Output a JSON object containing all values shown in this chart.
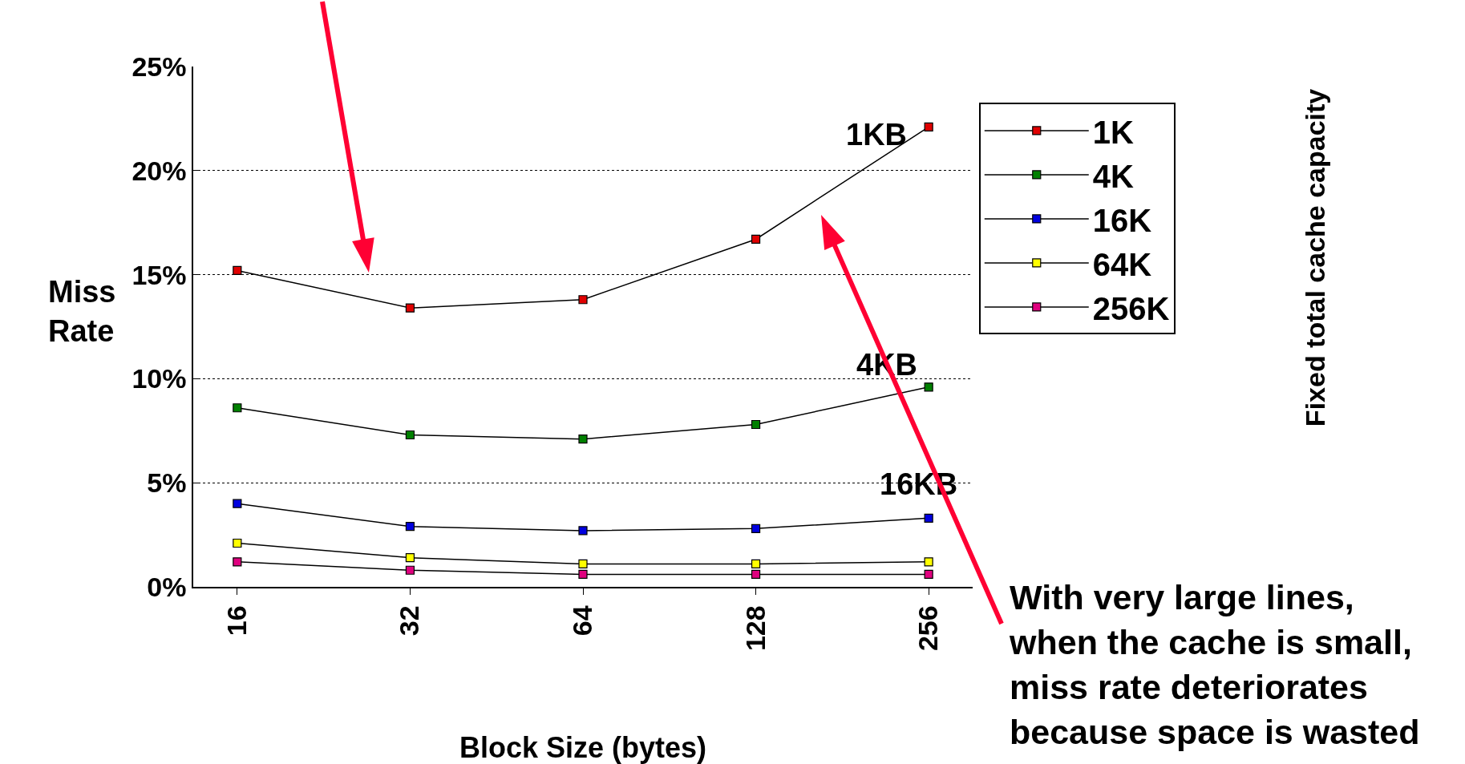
{
  "chart_data": {
    "type": "line",
    "xlabel": "Block Size (bytes)",
    "ylabel": "Miss Rate",
    "legend_title": "Fixed total cache capacity",
    "categories": [
      "16",
      "32",
      "64",
      "128",
      "256"
    ],
    "series": [
      {
        "name": "1K",
        "color": "#e00000",
        "values": [
          15.2,
          13.4,
          13.8,
          16.7,
          22.1
        ]
      },
      {
        "name": "4K",
        "color": "#008000",
        "values": [
          8.6,
          7.3,
          7.1,
          7.8,
          9.6
        ]
      },
      {
        "name": "16K",
        "color": "#0000e0",
        "values": [
          4.0,
          2.9,
          2.7,
          2.8,
          3.3
        ]
      },
      {
        "name": "64K",
        "color": "#ffff00",
        "values": [
          2.1,
          1.4,
          1.1,
          1.1,
          1.2
        ]
      },
      {
        "name": "256K",
        "color": "#e0007f",
        "values": [
          1.2,
          0.8,
          0.6,
          0.6,
          0.6
        ]
      }
    ],
    "ylim": [
      0,
      25
    ],
    "yticks": [
      {
        "value": 0,
        "label": "0%"
      },
      {
        "value": 5,
        "label": "5%"
      },
      {
        "value": 10,
        "label": "10%"
      },
      {
        "value": 15,
        "label": "15%"
      },
      {
        "value": 20,
        "label": "20%"
      },
      {
        "value": 25,
        "label": "25%"
      }
    ],
    "grid": "y",
    "legend": "right",
    "marker": "square",
    "line_style": "solid",
    "annotations": [
      "1KB",
      "4KB",
      "16KB",
      "With very large lines, when the cache is small, miss rate deteriorates because space is wasted"
    ]
  }
}
